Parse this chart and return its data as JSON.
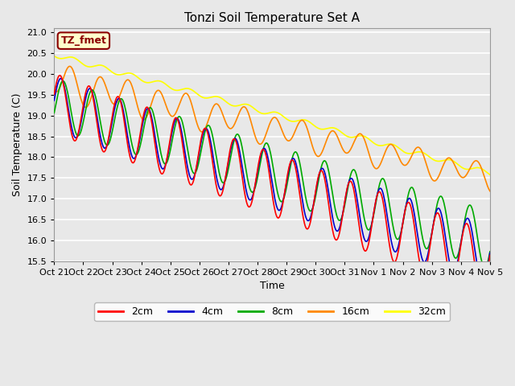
{
  "title": "Tonzi Soil Temperature Set A",
  "xlabel": "Time",
  "ylabel": "Soil Temperature (C)",
  "ylim": [
    15.5,
    21.1
  ],
  "bg_color": "#e8e8e8",
  "plot_bg": "#e8e8e8",
  "grid_color": "white",
  "annotation_label": "TZ_fmet",
  "annotation_color": "#8b0000",
  "annotation_bg": "#ffffcc",
  "annotation_border": "#8b0000",
  "line_colors": {
    "2cm": "#ff0000",
    "4cm": "#0000cc",
    "8cm": "#00aa00",
    "16cm": "#ff8800",
    "32cm": "#ffff00"
  },
  "line_width": 1.2,
  "x_tick_labels": [
    "Oct 21",
    "Oct 22",
    "Oct 23",
    "Oct 24",
    "Oct 25",
    "Oct 26",
    "Oct 27",
    "Oct 28",
    "Oct 29",
    "Oct 30",
    "Oct 31",
    "Nov 1",
    "Nov 2",
    "Nov 3",
    "Nov 4",
    "Nov 5"
  ],
  "n_points": 720,
  "date_range_days": 15
}
